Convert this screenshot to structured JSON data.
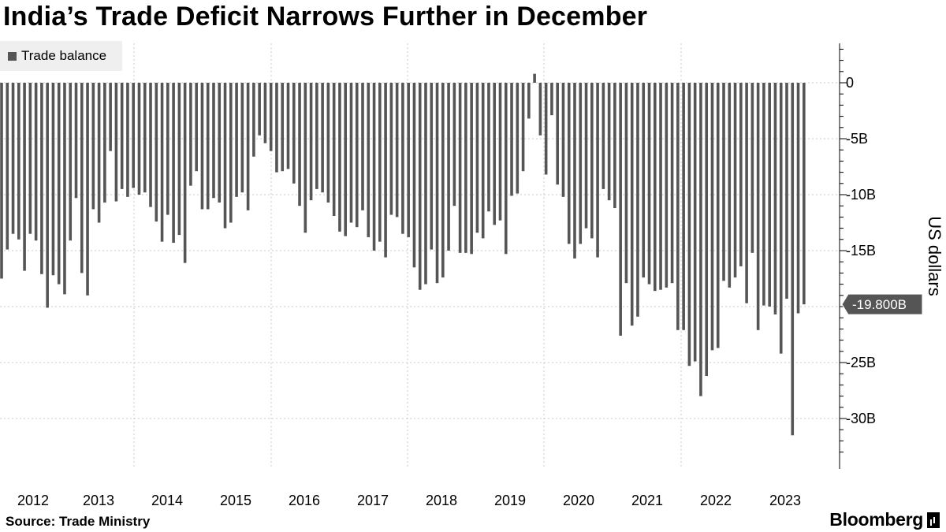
{
  "title": "India’s Trade Deficit Narrows Further in December",
  "source": "Source: Trade Ministry",
  "brand": "Bloomberg",
  "chart_data": {
    "type": "bar",
    "title": "India’s Trade Deficit Narrows Further in December",
    "ylabel": "US dollars",
    "xlabel": "",
    "ylim": [
      -34,
      4
    ],
    "y_ticks": [
      0,
      -5,
      -10,
      -15,
      -25,
      -30
    ],
    "y_tick_labels": [
      "0",
      "-5B",
      "-10B",
      "-15B",
      "-25B",
      "-30B"
    ],
    "x_years": [
      "2012",
      "2013",
      "2014",
      "2015",
      "2016",
      "2017",
      "2018",
      "2019",
      "2020",
      "2021",
      "2022",
      "2023"
    ],
    "legend": [
      {
        "name": "Trade balance",
        "color": "#555555"
      }
    ],
    "legend_position": "top-left",
    "last_value_label": "-19.800B",
    "series": [
      {
        "name": "Trade balance",
        "unit": "billion US dollars",
        "start": "2012-01",
        "frequency": "monthly",
        "values": [
          -17.5,
          -14.9,
          -13.5,
          -14.0,
          -16.8,
          -13.5,
          -14.1,
          -17.1,
          -20.1,
          -17.2,
          -18.0,
          -18.9,
          -14.1,
          -10.3,
          -17.0,
          -19.0,
          -11.3,
          -12.5,
          -10.7,
          -6.1,
          -10.6,
          -9.5,
          -10.2,
          -9.4,
          -10.0,
          -9.8,
          -11.1,
          -12.4,
          -14.2,
          -11.8,
          -14.3,
          -13.6,
          -16.1,
          -9.2,
          -7.9,
          -11.3,
          -11.3,
          -10.3,
          -10.7,
          -13.0,
          -12.5,
          -10.2,
          -9.8,
          -11.4,
          -6.6,
          -4.7,
          -5.4,
          -6.1,
          -8.0,
          -7.9,
          -7.7,
          -9.0,
          -11.0,
          -13.4,
          -10.5,
          -9.5,
          -9.8,
          -10.7,
          -11.9,
          -13.3,
          -13.7,
          -12.5,
          -12.9,
          -11.4,
          -13.8,
          -15.0,
          -14.2,
          -15.6,
          -11.8,
          -12.0,
          -13.5,
          -13.8,
          -16.5,
          -18.5,
          -18.0,
          -14.9,
          -17.9,
          -17.4,
          -15.0,
          -11.0,
          -15.2,
          -15.2,
          -15.3,
          -13.4,
          -13.9,
          -11.5,
          -12.7,
          -12.3,
          -15.3,
          -10.1,
          -9.9,
          -7.9,
          -3.2,
          0.8,
          -4.7,
          -8.2,
          -2.9,
          -9.1,
          -10.2,
          -14.4,
          -15.7,
          -14.4,
          -13.0,
          -13.9,
          -15.6,
          -9.5,
          -10.5,
          -11.2,
          -22.6,
          -17.9,
          -21.7,
          -20.9,
          -17.4,
          -18.0,
          -18.6,
          -18.5,
          -18.3,
          -17.9,
          -22.1,
          -22.1,
          -25.3,
          -24.9,
          -28.0,
          -26.2,
          -23.9,
          -23.7,
          -17.7,
          -18.3,
          -17.4,
          -16.4,
          -19.7,
          -15.2,
          -22.1,
          -19.9,
          -20.0,
          -20.7,
          -24.2,
          -19.3,
          -31.5,
          -20.6,
          -19.8
        ]
      }
    ]
  }
}
